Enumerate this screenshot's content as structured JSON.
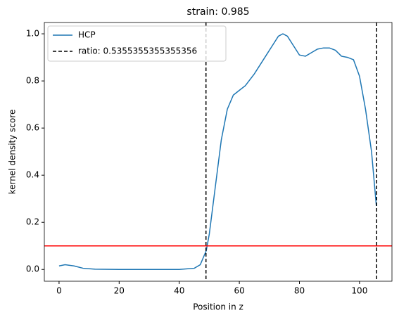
{
  "chart_data": {
    "type": "line",
    "title": "strain: 0.985",
    "x_label": "Position in z",
    "y_label": "kernel density score",
    "x": [
      0,
      2,
      5,
      8,
      12,
      20,
      30,
      40,
      45,
      47,
      49,
      50,
      52,
      54,
      56,
      58,
      60,
      62,
      65,
      68,
      71,
      73,
      74.5,
      76,
      78,
      80,
      82,
      84,
      86,
      88,
      90,
      92,
      94,
      96,
      98,
      100,
      102,
      104,
      105.6
    ],
    "series": [
      {
        "name": "HCP",
        "color": "#1f77b4",
        "values": [
          0.015,
          0.02,
          0.015,
          0.005,
          0.001,
          0,
          0,
          0,
          0.005,
          0.02,
          0.08,
          0.15,
          0.35,
          0.55,
          0.68,
          0.74,
          0.76,
          0.78,
          0.83,
          0.89,
          0.95,
          0.99,
          1.0,
          0.99,
          0.95,
          0.91,
          0.905,
          0.92,
          0.935,
          0.94,
          0.94,
          0.93,
          0.905,
          0.9,
          0.89,
          0.82,
          0.68,
          0.5,
          0.27
        ]
      }
    ],
    "vlines": {
      "name": "ratio: 0.5355355355355356",
      "color": "#000000",
      "values": [
        48.9,
        105.7
      ]
    },
    "hline": {
      "color": "#ff0000",
      "value": 0.1
    },
    "xlim": [
      -4.9,
      110.8
    ],
    "ylim": [
      -0.05,
      1.048
    ],
    "xticks": [
      0,
      20,
      40,
      60,
      80,
      100
    ],
    "yticks": [
      {
        "value": 0,
        "label": "0.0"
      },
      0.2,
      0.4,
      0.6,
      0.8,
      {
        "value": 1,
        "label": "1.0"
      }
    ],
    "legend": "upper left"
  }
}
